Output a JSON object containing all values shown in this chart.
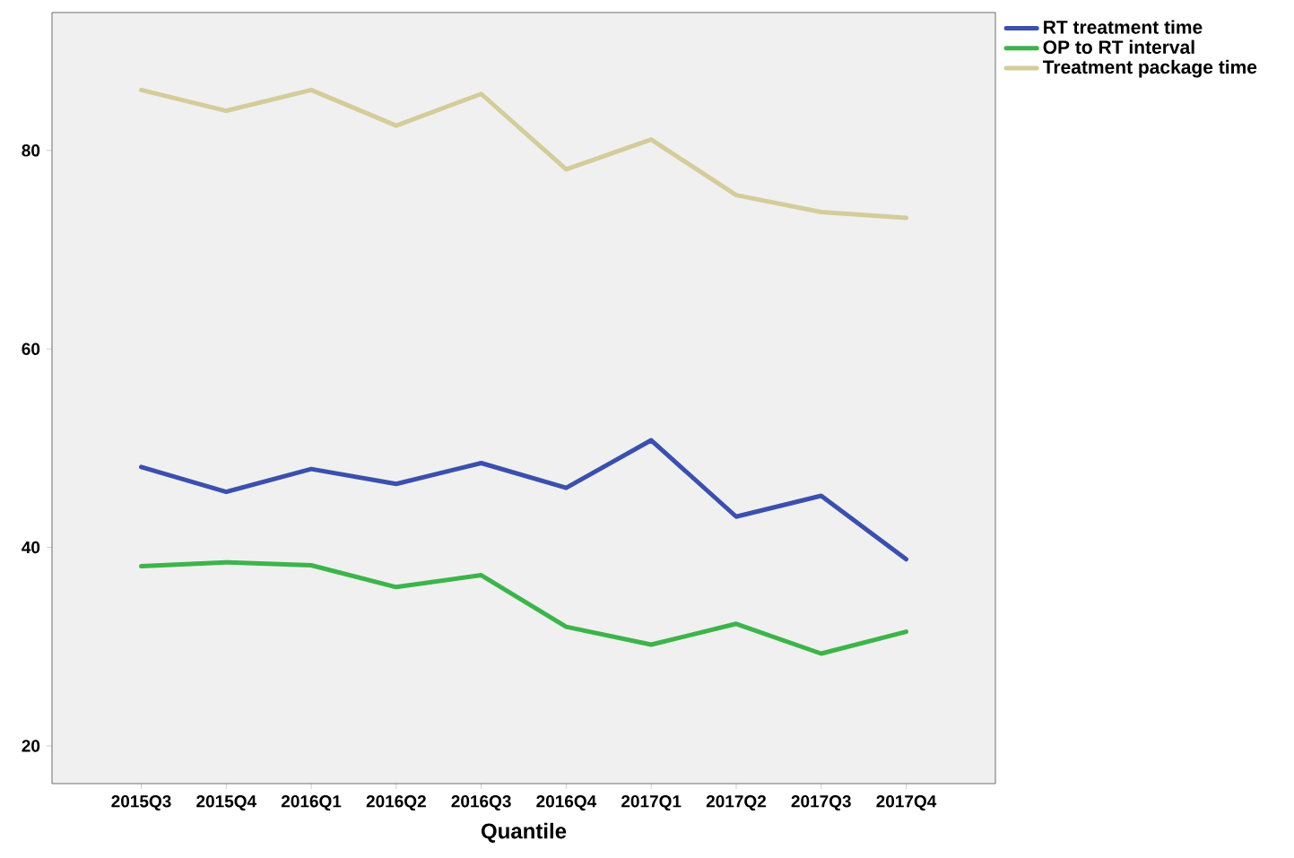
{
  "chart_data": {
    "type": "line",
    "xlabel": "Quantile",
    "categories": [
      "2015Q3",
      "2015Q4",
      "2016Q1",
      "2016Q2",
      "2016Q3",
      "2016Q4",
      "2017Q1",
      "2017Q2",
      "2017Q3",
      "2017Q4"
    ],
    "series": [
      {
        "name": "RT treatment time",
        "color": "#3b4fae",
        "values": [
          48.1,
          45.6,
          47.9,
          46.4,
          48.5,
          46.0,
          50.8,
          43.1,
          45.2,
          38.8
        ]
      },
      {
        "name": "OP to RT interval",
        "color": "#3cb44a",
        "values": [
          38.1,
          38.5,
          38.2,
          36.0,
          37.2,
          32.0,
          30.2,
          32.3,
          29.3,
          31.5
        ]
      },
      {
        "name": "Treatment package time",
        "color": "#d4cc9a",
        "values": [
          86.1,
          84.0,
          86.1,
          82.5,
          85.7,
          78.1,
          81.1,
          75.5,
          73.8,
          73.2
        ]
      }
    ],
    "ylim": [
      16.2,
      93.9
    ],
    "yticks": [
      20,
      40,
      60,
      80
    ],
    "legend": "top right",
    "grid": false,
    "line_style": "solid",
    "marker": "none"
  }
}
